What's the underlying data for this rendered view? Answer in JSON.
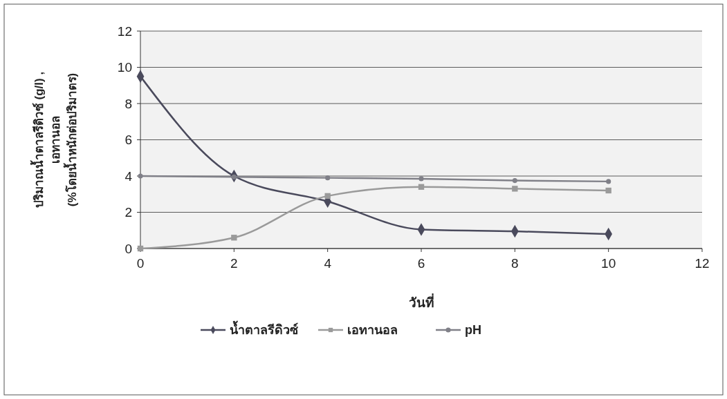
{
  "chart_data": {
    "type": "line",
    "xlabel": "วันที่",
    "ylabel": "ปริมาณน้ำตาลรีดิวซ์ (g/l) ,\nเอทานอล\n(%โดยน้ำหนักต่อปริมาตร)",
    "x": [
      0,
      2,
      4,
      6,
      8,
      10
    ],
    "series": [
      {
        "name": "น้ำตาลรีดิวซ์",
        "color": "#4a4a5c",
        "marker": "diamond",
        "values": [
          9.5,
          4.0,
          2.6,
          1.05,
          0.95,
          0.8
        ]
      },
      {
        "name": "เอทานอล",
        "color": "#9a9a9a",
        "marker": "square",
        "values": [
          0,
          0.6,
          2.9,
          3.4,
          3.3,
          3.2
        ]
      },
      {
        "name": "pH",
        "color": "#808088",
        "marker": "circle",
        "values": [
          4.0,
          3.95,
          3.9,
          3.85,
          3.75,
          3.7
        ]
      }
    ],
    "xlim": [
      0,
      12
    ],
    "xticks": [
      0,
      2,
      4,
      6,
      8,
      10,
      12
    ],
    "ylim": [
      0,
      12
    ],
    "yticks": [
      0,
      2,
      4,
      6,
      8,
      10,
      12
    ],
    "grid": "y",
    "legend": "bottom",
    "line_style": "solid"
  }
}
